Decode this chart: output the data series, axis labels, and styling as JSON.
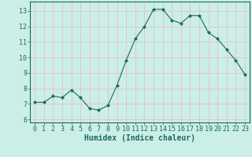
{
  "x": [
    0,
    1,
    2,
    3,
    4,
    5,
    6,
    7,
    8,
    9,
    10,
    11,
    12,
    13,
    14,
    15,
    16,
    17,
    18,
    19,
    20,
    21,
    22,
    23
  ],
  "y": [
    7.1,
    7.1,
    7.5,
    7.4,
    7.9,
    7.4,
    6.7,
    6.6,
    6.9,
    8.2,
    9.8,
    11.2,
    12.0,
    13.1,
    13.1,
    12.4,
    12.2,
    12.7,
    12.7,
    11.6,
    11.2,
    10.5,
    9.8,
    8.9
  ],
  "xlabel": "Humidex (Indice chaleur)",
  "ylim": [
    5.8,
    13.6
  ],
  "xlim": [
    -0.5,
    23.5
  ],
  "yticks": [
    6,
    7,
    8,
    9,
    10,
    11,
    12,
    13
  ],
  "xticks": [
    0,
    1,
    2,
    3,
    4,
    5,
    6,
    7,
    8,
    9,
    10,
    11,
    12,
    13,
    14,
    15,
    16,
    17,
    18,
    19,
    20,
    21,
    22,
    23
  ],
  "line_color": "#1a6b5a",
  "marker_color": "#1a6b5a",
  "bg_color": "#cceee8",
  "grid_color": "#e8b8b8",
  "tick_label_color": "#1a6b5a",
  "xlabel_color": "#1a6b5a",
  "axis_color": "#1a6b5a",
  "font_size": 6,
  "xlabel_font_size": 7
}
